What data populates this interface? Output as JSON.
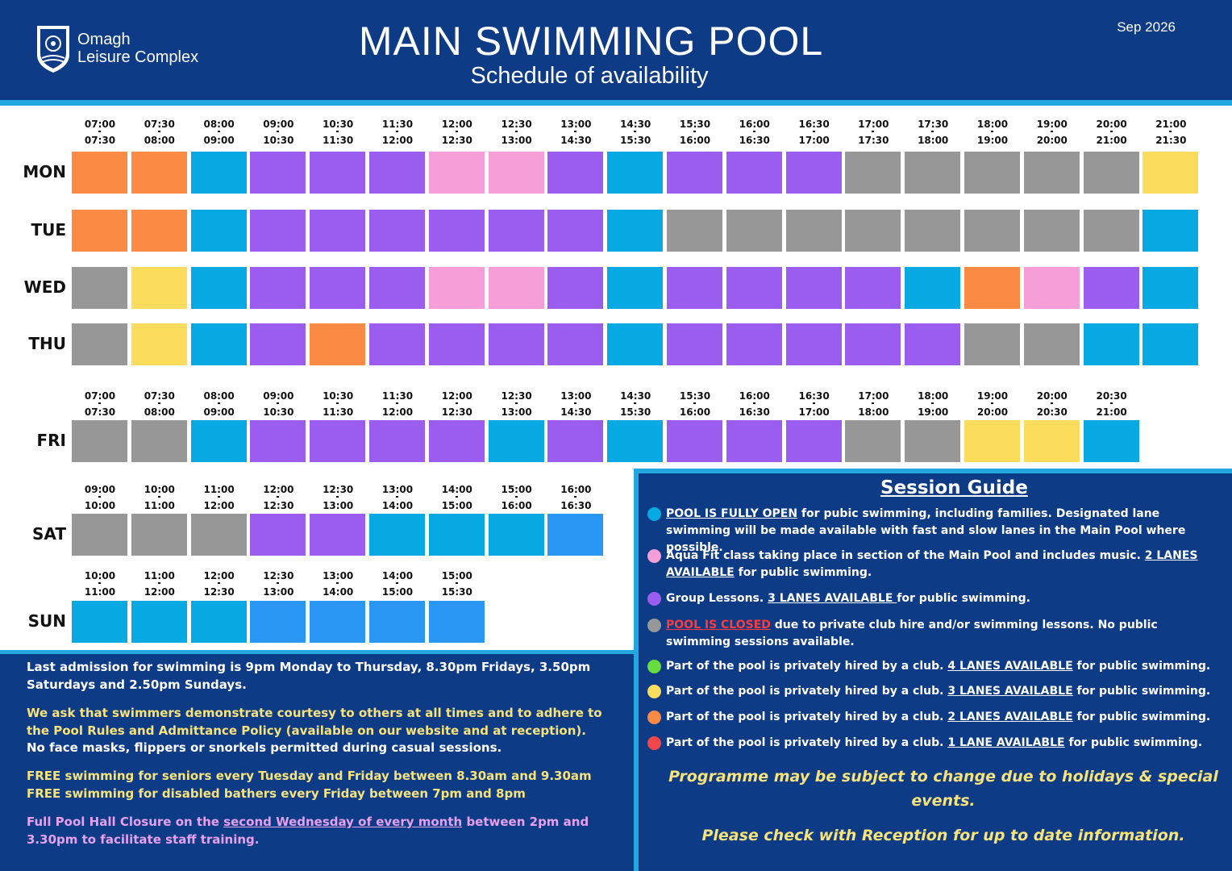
{
  "header": {
    "logo_line1": "Omagh",
    "logo_line2": "Leisure Complex",
    "title": "MAIN SWIMMING POOL",
    "subtitle": "Schedule of availability",
    "date": "Sep 2026"
  },
  "colors": {
    "blue": "#07a9e2",
    "blue2": "#2b97f4",
    "purple": "#9b5cf0",
    "pink": "#f59ed8",
    "grey": "#979797",
    "orange": "#fb8a45",
    "yellow": "#fcdc5c",
    "green": "#66dd3c",
    "red": "#f04848",
    "header_bg": "#0e3b86",
    "stripe": "#23a7e0"
  },
  "schedule": {
    "mon_thu": {
      "times": [
        [
          "07:00",
          "07:30"
        ],
        [
          "07:30",
          "08:00"
        ],
        [
          "08:00",
          "09:00"
        ],
        [
          "09:00",
          "10:30"
        ],
        [
          "10:30",
          "11:30"
        ],
        [
          "11:30",
          "12:00"
        ],
        [
          "12:00",
          "12:30"
        ],
        [
          "12:30",
          "13:00"
        ],
        [
          "13:00",
          "14:30"
        ],
        [
          "14:30",
          "15:30"
        ],
        [
          "15:30",
          "16:00"
        ],
        [
          "16:00",
          "16:30"
        ],
        [
          "16:30",
          "17:00"
        ],
        [
          "17:00",
          "17:30"
        ],
        [
          "17:30",
          "18:00"
        ],
        [
          "18:00",
          "19:00"
        ],
        [
          "19:00",
          "20:00"
        ],
        [
          "20:00",
          "21:00"
        ],
        [
          "21:00",
          "21:30"
        ]
      ],
      "rows": [
        {
          "day": "MON",
          "cells": [
            "orange",
            "orange",
            "blue",
            "purple",
            "purple",
            "purple",
            "pink",
            "pink",
            "purple",
            "blue",
            "purple",
            "purple",
            "purple",
            "grey",
            "grey",
            "grey",
            "grey",
            "grey",
            "yellow"
          ]
        },
        {
          "day": "TUE",
          "cells": [
            "orange",
            "orange",
            "blue",
            "purple",
            "purple",
            "purple",
            "purple",
            "purple",
            "purple",
            "blue",
            "grey",
            "grey",
            "grey",
            "grey",
            "grey",
            "grey",
            "grey",
            "grey",
            "blue"
          ]
        },
        {
          "day": "WED",
          "cells": [
            "grey",
            "yellow",
            "blue",
            "purple",
            "purple",
            "purple",
            "pink",
            "pink",
            "purple",
            "blue",
            "purple",
            "purple",
            "purple",
            "purple",
            "blue",
            "orange",
            "pink",
            "purple",
            "blue"
          ]
        },
        {
          "day": "THU",
          "cells": [
            "grey",
            "yellow",
            "blue",
            "purple",
            "orange",
            "purple",
            "purple",
            "purple",
            "purple",
            "blue",
            "purple",
            "purple",
            "purple",
            "purple",
            "purple",
            "grey",
            "grey",
            "blue",
            "blue"
          ]
        }
      ]
    },
    "fri": {
      "day": "FRI",
      "times": [
        [
          "07:00",
          "07:30"
        ],
        [
          "07:30",
          "08:00"
        ],
        [
          "08:00",
          "09:00"
        ],
        [
          "09:00",
          "10:30"
        ],
        [
          "10:30",
          "11:30"
        ],
        [
          "11:30",
          "12:00"
        ],
        [
          "12:00",
          "12:30"
        ],
        [
          "12:30",
          "13:00"
        ],
        [
          "13:00",
          "14:30"
        ],
        [
          "14:30",
          "15:30"
        ],
        [
          "15:30",
          "16:00"
        ],
        [
          "16:00",
          "16:30"
        ],
        [
          "16:30",
          "17:00"
        ],
        [
          "17:00",
          "18:00"
        ],
        [
          "18:00",
          "19:00"
        ],
        [
          "19:00",
          "20:00"
        ],
        [
          "20:00",
          "20:30"
        ],
        [
          "20:30",
          "21:00"
        ]
      ],
      "cells": [
        "grey",
        "grey",
        "blue",
        "purple",
        "purple",
        "purple",
        "purple",
        "blue",
        "purple",
        "blue",
        "purple",
        "purple",
        "purple",
        "grey",
        "grey",
        "yellow",
        "yellow",
        "blue"
      ]
    },
    "sat": {
      "day": "SAT",
      "times": [
        [
          "09:00",
          "10:00"
        ],
        [
          "10:00",
          "11:00"
        ],
        [
          "11:00",
          "12:00"
        ],
        [
          "12:00",
          "12:30"
        ],
        [
          "12:30",
          "13:00"
        ],
        [
          "13:00",
          "14:00"
        ],
        [
          "14:00",
          "15:00"
        ],
        [
          "15:00",
          "16:00"
        ],
        [
          "16:00",
          "16:30"
        ]
      ],
      "cells": [
        "grey",
        "grey",
        "grey",
        "purple",
        "purple",
        "blue",
        "blue",
        "blue",
        "blue2"
      ]
    },
    "sun": {
      "day": "SUN",
      "times": [
        [
          "10:00",
          "11:00"
        ],
        [
          "11:00",
          "12:00"
        ],
        [
          "12:00",
          "12:30"
        ],
        [
          "12:30",
          "13:00"
        ],
        [
          "13:00",
          "14:00"
        ],
        [
          "14:00",
          "15:00"
        ],
        [
          "15:00",
          "15:30"
        ]
      ],
      "cells": [
        "blue",
        "blue",
        "blue",
        "blue2",
        "blue2",
        "blue2",
        "blue2"
      ]
    }
  },
  "notes": {
    "admission": "Last admission for swimming is 9pm Monday to Thursday, 8.30pm Fridays, 3.50pm Saturdays and 2.50pm Sundays.",
    "courtesy": "We ask that swimmers demonstrate courtesy to others at all times and to adhere to the Pool Rules and Admittance Policy (available on our website and at reception).",
    "no_masks": "No face masks, flippers or snorkels permitted during casual sessions.",
    "free_seniors": "FREE swimming for seniors every Tuesday and Friday between 8.30am and 9.30am",
    "free_disabled": "FREE swimming for disabled bathers every Friday between 7pm and 8pm",
    "closure_pre": "Full Pool Hall Closure on the ",
    "closure_link": "second Wednesday of every month",
    "closure_post": " between 2pm and 3.30pm to facilitate staff training."
  },
  "guide": {
    "title": "Session Guide",
    "items": [
      {
        "color": "blue",
        "parts": [
          {
            "t": "POOL IS FULLY OPEN",
            "s": "ul"
          },
          {
            "t": " for pubic swimming, including families. Designated lane swimming will be made available with fast and slow lanes in the Main Pool where possible.",
            "s": ""
          }
        ]
      },
      {
        "color": "pink",
        "parts": [
          {
            "t": "Aqua Fit class taking place in section of the Main Pool and includes music. ",
            "s": ""
          },
          {
            "t": "2 LANES AVAILABLE",
            "s": "ul"
          },
          {
            "t": " for public swimming.",
            "s": ""
          }
        ]
      },
      {
        "color": "purple",
        "parts": [
          {
            "t": "Group Lessons.  ",
            "s": ""
          },
          {
            "t": "3 LANES AVAILABLE ",
            "s": "ul"
          },
          {
            "t": "for public swimming.",
            "s": ""
          }
        ]
      },
      {
        "color": "grey",
        "parts": [
          {
            "t": "POOL IS CLOSED",
            "s": "red"
          },
          {
            "t": " due to private club hire and/or swimming lessons. No public swimming sessions available.",
            "s": ""
          }
        ]
      },
      {
        "color": "green",
        "parts": [
          {
            "t": "Part of the pool is privately hired by a club.  ",
            "s": ""
          },
          {
            "t": "4 LANES AVAILABLE",
            "s": "ul"
          },
          {
            "t": " for public swimming.",
            "s": ""
          }
        ]
      },
      {
        "color": "yellow",
        "parts": [
          {
            "t": "Part of the pool is privately hired by a club.  ",
            "s": ""
          },
          {
            "t": "3 LANES AVAILABLE",
            "s": "ul"
          },
          {
            "t": " for public swimming.",
            "s": ""
          }
        ]
      },
      {
        "color": "orange",
        "parts": [
          {
            "t": "Part of the pool is privately hired by a club.  ",
            "s": ""
          },
          {
            "t": "2 LANES AVAILABLE",
            "s": "ul"
          },
          {
            "t": " for public swimming.",
            "s": ""
          }
        ]
      },
      {
        "color": "red",
        "parts": [
          {
            "t": "Part of the pool is privately hired by a club.  ",
            "s": ""
          },
          {
            "t": "1 LANE AVAILABLE",
            "s": "ul"
          },
          {
            "t": " for public swimming.",
            "s": ""
          }
        ]
      }
    ],
    "footer1": "Programme may be subject to change due to holidays & special events.",
    "footer2": "Please check with Reception for up to date information."
  }
}
